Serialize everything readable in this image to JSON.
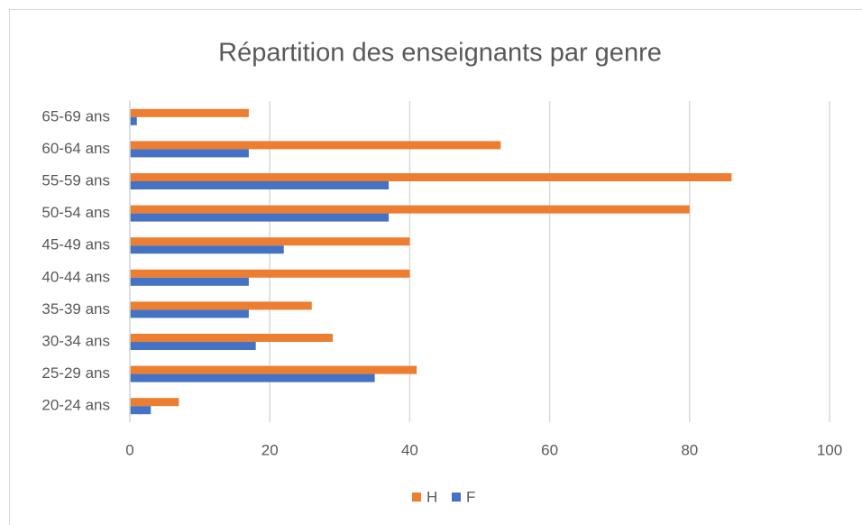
{
  "chart_data": {
    "type": "hbar",
    "title": "Répartition des enseignants par genre",
    "categories": [
      "20-24 ans",
      "25-29 ans",
      "30-34 ans",
      "35-39 ans",
      "40-44 ans",
      "45-49 ans",
      "50-54 ans",
      "55-59 ans",
      "60-64 ans",
      "65-69 ans"
    ],
    "series": [
      {
        "name": "H",
        "color": "#ed7d31",
        "values": [
          7,
          41,
          29,
          26,
          40,
          40,
          80,
          86,
          53,
          17
        ]
      },
      {
        "name": "F",
        "color": "#4472c4",
        "values": [
          3,
          35,
          18,
          17,
          17,
          22,
          37,
          37,
          17,
          1
        ]
      }
    ],
    "xlim": [
      0,
      100
    ],
    "xticks": [
      0,
      20,
      40,
      60,
      80,
      100
    ],
    "grid": true,
    "legend": "bottom"
  }
}
